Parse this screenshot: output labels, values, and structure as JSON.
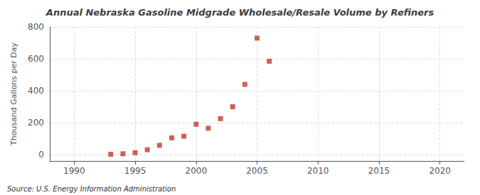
{
  "chart_data": {
    "type": "scatter",
    "title": "Annual Nebraska Gasoline Midgrade Wholesale/Resale Volume by Refiners",
    "ylabel": "Thousand Gallons per Day",
    "annotations": [
      "Source: U.S. Energy Information Administration"
    ],
    "x": [
      1993,
      1994,
      1995,
      1996,
      1997,
      1998,
      1999,
      2000,
      2001,
      2002,
      2003,
      2004,
      2005,
      2006
    ],
    "values": [
      2,
      5,
      12,
      30,
      58,
      105,
      115,
      190,
      165,
      225,
      300,
      440,
      730,
      585
    ],
    "color": "#c0392b",
    "marker": "square",
    "xlim": [
      1988,
      2022
    ],
    "xticks": [
      1990,
      1995,
      2000,
      2005,
      2010,
      2015,
      2020
    ],
    "ylim": [
      -40,
      800
    ],
    "yticks": [
      0,
      200,
      400,
      600,
      800
    ],
    "grid": true
  }
}
